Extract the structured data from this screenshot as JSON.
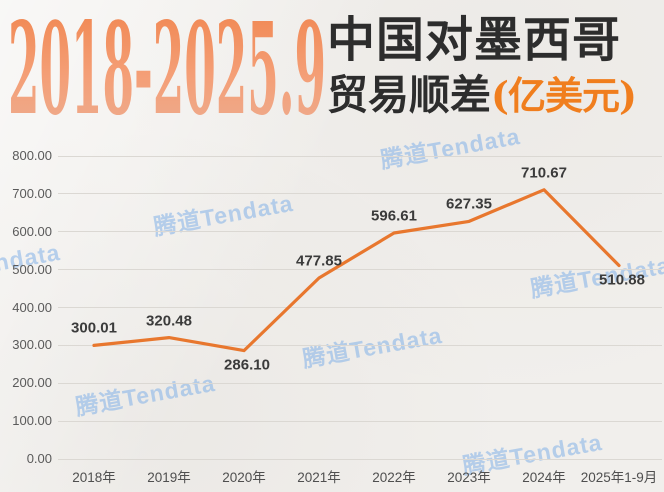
{
  "header": {
    "years": "2018-2025.9",
    "title": "中国对墨西哥",
    "subtitle": "贸易顺差",
    "unit": "(亿美元)"
  },
  "watermark": {
    "text": "腾道Tendata",
    "color": "#8FBCEA"
  },
  "colors": {
    "accent_orange": "#F07E1E",
    "line_orange": "#E8772E",
    "title_gradient_top": "#F0834B",
    "title_gradient_bottom": "#ECAE93",
    "watermark_blue": "#8FBCEA",
    "background_paper": "#F1EFEC",
    "gridline_gray": "#DBD8D3"
  },
  "chart_data": {
    "type": "line",
    "title": "2018-2025.9 中国对墨西哥贸易顺差(亿美元)",
    "categories": [
      "2018年",
      "2019年",
      "2020年",
      "2021年",
      "2022年",
      "2023年",
      "2024年",
      "2025年1-9月"
    ],
    "values": [
      300.01,
      320.48,
      286.1,
      477.85,
      596.61,
      627.35,
      710.67,
      510.88
    ],
    "point_labels": [
      "300.01",
      "320.48",
      "286.10",
      "477.85",
      "596.61",
      "627.35",
      "710.67",
      "510.88"
    ],
    "label_positions": [
      "above",
      "above",
      "below",
      "above",
      "above",
      "above",
      "above",
      "below"
    ],
    "xlabel": "",
    "ylabel": "",
    "ylim": [
      0,
      800
    ],
    "y_tick_step": 100,
    "y_ticks": [
      "800.00",
      "700.00",
      "600.00",
      "500.00",
      "400.00",
      "300.00",
      "200.00",
      "100.00",
      "0.00"
    ],
    "grid": true,
    "legend": "none",
    "line_color": "#E8772E"
  }
}
